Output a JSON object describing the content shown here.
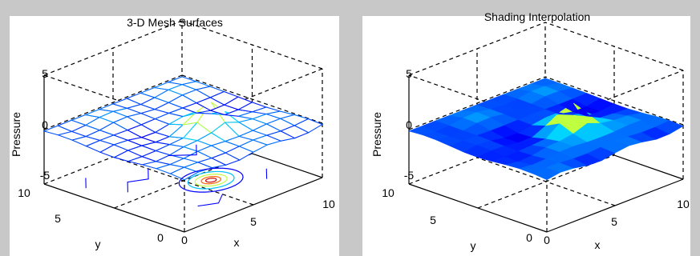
{
  "figure": {
    "background": "#c8c8c8"
  },
  "chart_data": [
    {
      "type": "surface",
      "style": "mesh",
      "title": "3-D Mesh Surfaces",
      "xlabel": "x",
      "ylabel": "y",
      "zlabel": "Pressure",
      "xlim": [
        0,
        10
      ],
      "ylim": [
        0,
        10
      ],
      "zlim": [
        -5,
        5
      ],
      "x_ticks": [
        "0",
        "5",
        "10"
      ],
      "y_ticks": [
        "0",
        "5",
        "10"
      ],
      "z_ticks": [
        "-5",
        "0",
        "5"
      ],
      "peak": {
        "x": 6,
        "y": 4,
        "z": 2.5
      },
      "contour_on_floor": true,
      "colormap": [
        "#00008f",
        "#0000ff",
        "#00ffff",
        "#ffff00",
        "#ff0000",
        "#800000"
      ]
    },
    {
      "type": "surface",
      "style": "interpolated-shading",
      "title": "Shading Interpolation",
      "xlabel": "x",
      "ylabel": "y",
      "zlabel": "Pressure",
      "xlim": [
        0,
        10
      ],
      "ylim": [
        0,
        10
      ],
      "zlim": [
        -5,
        5
      ],
      "x_ticks": [
        "0",
        "5",
        "10"
      ],
      "y_ticks": [
        "0",
        "5",
        "10"
      ],
      "z_ticks": [
        "-5",
        "0",
        "5"
      ],
      "peak": {
        "x": 6,
        "y": 4,
        "z": 2.5
      },
      "contour_on_floor": false,
      "colormap": [
        "#00008f",
        "#0000ff",
        "#00ffff",
        "#ffff00",
        "#ff0000",
        "#800000"
      ]
    }
  ]
}
